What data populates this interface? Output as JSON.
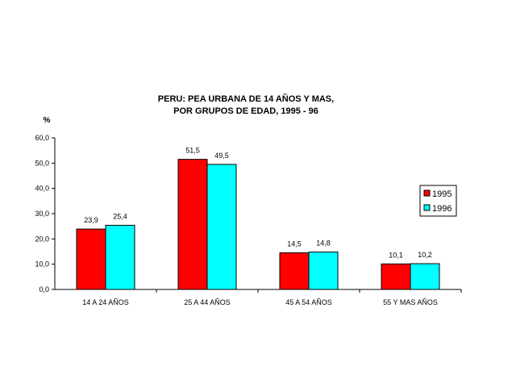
{
  "chart_data": {
    "type": "bar",
    "title_lines": [
      "PERU: PEA URBANA DE 14 AÑOS Y MAS,",
      "POR GRUPOS DE EDAD, 1995 - 96"
    ],
    "ylabel": "%",
    "xlabel": "",
    "categories": [
      "14 A 24 AÑOS",
      "25 A 44 AÑOS",
      "45 A 54 AÑOS",
      "55 Y MAS AÑOS"
    ],
    "series": [
      {
        "name": "1995",
        "values": [
          23.9,
          51.5,
          14.5,
          10.1
        ],
        "labels": [
          "23,9",
          "51,5",
          "14,5",
          "10,1"
        ],
        "color": "#ff0000"
      },
      {
        "name": "1996",
        "values": [
          25.4,
          49.5,
          14.8,
          10.2
        ],
        "labels": [
          "25,4",
          "49,5",
          "14,8",
          "10,2"
        ],
        "color": "#00ffff"
      }
    ],
    "ylim": [
      0,
      60
    ],
    "yticks": [
      0,
      10,
      20,
      30,
      40,
      50,
      60
    ],
    "ytick_labels": [
      "0,0",
      "10,0",
      "20,0",
      "30,0",
      "40,0",
      "50,0",
      "60,0"
    ],
    "grid": false,
    "legend_position": "right"
  }
}
